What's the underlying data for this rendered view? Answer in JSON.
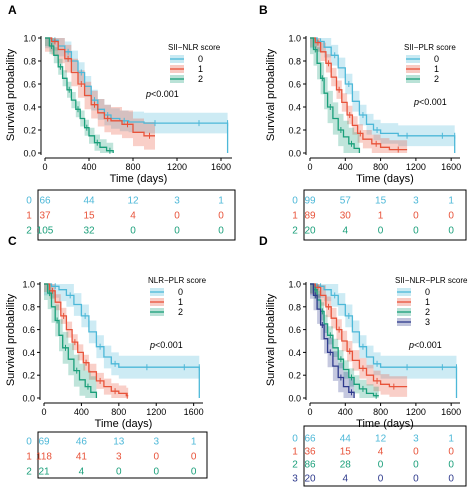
{
  "colors": {
    "c0": "#4db8d8",
    "c1": "#e8533a",
    "c2": "#1a9f7a",
    "c3": "#2e3a8c"
  },
  "chart_data": [
    {
      "id": "A",
      "type": "line",
      "subtype": "kaplan-meier",
      "panel_label": "A",
      "xlabel": "Time (days)",
      "ylabel": "Survival probability",
      "xticks": [
        "0",
        "400",
        "800",
        "1200",
        "1600"
      ],
      "yticks": [
        "0.0",
        "0.2",
        "0.4",
        "0.6",
        "0.8",
        "1.0"
      ],
      "xlim": [
        0,
        1700
      ],
      "ylim": [
        0,
        1.0
      ],
      "legend_title": "SII−NLR score",
      "legend_position": "top-right",
      "pvalue_label": "p<0.001",
      "series": [
        {
          "name": "0",
          "color_key": "c0",
          "x": [
            0,
            60,
            120,
            180,
            240,
            300,
            360,
            420,
            480,
            540,
            600,
            680,
            760,
            900,
            1100,
            1300,
            1500,
            1660,
            1660
          ],
          "y": [
            1.0,
            0.98,
            0.93,
            0.88,
            0.8,
            0.7,
            0.58,
            0.46,
            0.38,
            0.33,
            0.3,
            0.28,
            0.27,
            0.26,
            0.26,
            0.26,
            0.26,
            0.26,
            0.0
          ],
          "band": 0.09
        },
        {
          "name": "1",
          "color_key": "c1",
          "x": [
            0,
            60,
            120,
            180,
            240,
            300,
            360,
            420,
            480,
            540,
            600,
            700,
            800,
            900,
            1000
          ],
          "y": [
            1.0,
            0.97,
            0.9,
            0.82,
            0.7,
            0.6,
            0.5,
            0.42,
            0.35,
            0.3,
            0.28,
            0.25,
            0.18,
            0.15,
            0.15
          ],
          "band": 0.12
        },
        {
          "name": "2",
          "color_key": "c2",
          "x": [
            0,
            40,
            80,
            120,
            160,
            200,
            240,
            280,
            320,
            360,
            400,
            450,
            500,
            560,
            620
          ],
          "y": [
            1.0,
            0.93,
            0.85,
            0.75,
            0.65,
            0.55,
            0.46,
            0.38,
            0.3,
            0.22,
            0.15,
            0.09,
            0.05,
            0.02,
            0.0
          ],
          "band": 0.07
        }
      ],
      "risk_table": [
        {
          "group": "0",
          "color_key": "c0",
          "counts": [
            "66",
            "44",
            "12",
            "3",
            "1"
          ]
        },
        {
          "group": "1",
          "color_key": "c1",
          "counts": [
            "37",
            "15",
            "4",
            "0",
            "0"
          ]
        },
        {
          "group": "2",
          "color_key": "c2",
          "counts": [
            "105",
            "32",
            "0",
            "0",
            "0"
          ]
        }
      ]
    },
    {
      "id": "B",
      "type": "line",
      "subtype": "kaplan-meier",
      "panel_label": "B",
      "xlabel": "Time (days)",
      "ylabel": "Survival probability",
      "xticks": [
        "0",
        "400",
        "800",
        "1200",
        "1600"
      ],
      "yticks": [
        "0.0",
        "0.2",
        "0.4",
        "0.6",
        "0.8",
        "1.0"
      ],
      "xlim": [
        0,
        1700
      ],
      "ylim": [
        0,
        1.0
      ],
      "legend_title": "SII−PLR score",
      "legend_position": "top-right",
      "pvalue_label": "p<0.001",
      "series": [
        {
          "name": "0",
          "color_key": "c0",
          "x": [
            0,
            80,
            160,
            240,
            320,
            400,
            480,
            560,
            640,
            720,
            800,
            1000,
            1200,
            1400,
            1600,
            1640,
            1640
          ],
          "y": [
            1.0,
            0.97,
            0.92,
            0.85,
            0.74,
            0.6,
            0.45,
            0.33,
            0.25,
            0.2,
            0.17,
            0.15,
            0.15,
            0.15,
            0.15,
            0.15,
            0.0
          ],
          "band": 0.09
        },
        {
          "name": "1",
          "color_key": "c1",
          "x": [
            0,
            60,
            120,
            180,
            240,
            300,
            360,
            420,
            480,
            540,
            600,
            700,
            800,
            900,
            1100
          ],
          "y": [
            1.0,
            0.96,
            0.88,
            0.78,
            0.66,
            0.55,
            0.44,
            0.33,
            0.24,
            0.17,
            0.12,
            0.08,
            0.05,
            0.03,
            0.03
          ],
          "band": 0.08
        },
        {
          "name": "2",
          "color_key": "c2",
          "x": [
            0,
            40,
            80,
            120,
            160,
            200,
            260,
            320,
            380,
            440,
            500,
            560
          ],
          "y": [
            1.0,
            0.9,
            0.78,
            0.65,
            0.52,
            0.4,
            0.3,
            0.2,
            0.14,
            0.08,
            0.04,
            0.0
          ],
          "band": 0.14
        }
      ],
      "risk_table": [
        {
          "group": "0",
          "color_key": "c0",
          "counts": [
            "99",
            "57",
            "15",
            "3",
            "1"
          ]
        },
        {
          "group": "1",
          "color_key": "c1",
          "counts": [
            "89",
            "30",
            "1",
            "0",
            "0"
          ]
        },
        {
          "group": "2",
          "color_key": "c2",
          "counts": [
            "20",
            "4",
            "0",
            "0",
            "0"
          ]
        }
      ]
    },
    {
      "id": "C",
      "type": "line",
      "subtype": "kaplan-meier",
      "panel_label": "C",
      "xlabel": "Time (days)",
      "ylabel": "Survival probability",
      "xticks": [
        "0",
        "400",
        "800",
        "1200",
        "1600"
      ],
      "yticks": [
        "0.0",
        "0.2",
        "0.4",
        "0.6",
        "0.8",
        "1.0"
      ],
      "xlim": [
        0,
        1700
      ],
      "ylim": [
        0,
        1.0
      ],
      "legend_title": "NLR−PLR score",
      "legend_position": "top-right",
      "pvalue_label": "p<0.001",
      "series": [
        {
          "name": "0",
          "color_key": "c0",
          "x": [
            0,
            80,
            160,
            240,
            320,
            400,
            480,
            560,
            640,
            720,
            800,
            1000,
            1200,
            1400,
            1600,
            1660,
            1660
          ],
          "y": [
            1.0,
            0.98,
            0.95,
            0.9,
            0.82,
            0.72,
            0.58,
            0.45,
            0.36,
            0.3,
            0.27,
            0.27,
            0.27,
            0.27,
            0.27,
            0.27,
            0.0
          ],
          "band": 0.1
        },
        {
          "name": "1",
          "color_key": "c1",
          "x": [
            0,
            60,
            120,
            180,
            240,
            300,
            360,
            420,
            480,
            560,
            640,
            720,
            800,
            880,
            900
          ],
          "y": [
            1.0,
            0.94,
            0.84,
            0.72,
            0.6,
            0.49,
            0.4,
            0.31,
            0.23,
            0.15,
            0.1,
            0.06,
            0.04,
            0.02,
            0.02
          ],
          "band": 0.07
        },
        {
          "name": "2",
          "color_key": "c2",
          "x": [
            0,
            40,
            80,
            120,
            160,
            200,
            260,
            320,
            380,
            440,
            500,
            560
          ],
          "y": [
            1.0,
            0.92,
            0.8,
            0.68,
            0.55,
            0.44,
            0.34,
            0.24,
            0.16,
            0.1,
            0.05,
            0.0
          ],
          "band": 0.14
        }
      ],
      "risk_table": [
        {
          "group": "0",
          "color_key": "c0",
          "counts": [
            "69",
            "46",
            "13",
            "3",
            "1"
          ]
        },
        {
          "group": "1",
          "color_key": "c1",
          "counts": [
            "118",
            "41",
            "3",
            "0",
            "0"
          ]
        },
        {
          "group": "2",
          "color_key": "c2",
          "counts": [
            "21",
            "4",
            "0",
            "0",
            "0"
          ]
        }
      ]
    },
    {
      "id": "D",
      "type": "line",
      "subtype": "kaplan-meier",
      "panel_label": "D",
      "xlabel": "Time (days)",
      "ylabel": "Survival probability",
      "xticks": [
        "0",
        "400",
        "800",
        "1200",
        "1600"
      ],
      "yticks": [
        "0.0",
        "0.2",
        "0.4",
        "0.6",
        "0.8",
        "1.0"
      ],
      "xlim": [
        0,
        1700
      ],
      "ylim": [
        0,
        1.0
      ],
      "legend_title": "SII−NLR−PLR score",
      "legend_position": "top-right",
      "pvalue_label": "p<0.001",
      "series": [
        {
          "name": "0",
          "color_key": "c0",
          "x": [
            0,
            80,
            160,
            240,
            320,
            400,
            480,
            560,
            640,
            720,
            800,
            1000,
            1200,
            1400,
            1600,
            1660,
            1660
          ],
          "y": [
            1.0,
            0.98,
            0.95,
            0.9,
            0.82,
            0.72,
            0.58,
            0.45,
            0.36,
            0.3,
            0.27,
            0.27,
            0.27,
            0.27,
            0.27,
            0.27,
            0.0
          ],
          "band": 0.1
        },
        {
          "name": "1",
          "color_key": "c1",
          "x": [
            0,
            60,
            120,
            180,
            240,
            300,
            360,
            420,
            480,
            560,
            640,
            720,
            800,
            900,
            1000,
            1100
          ],
          "y": [
            1.0,
            0.97,
            0.9,
            0.8,
            0.7,
            0.6,
            0.5,
            0.41,
            0.33,
            0.26,
            0.2,
            0.15,
            0.12,
            0.1,
            0.1,
            0.1
          ],
          "band": 0.09
        },
        {
          "name": "2",
          "color_key": "c2",
          "x": [
            0,
            40,
            80,
            120,
            160,
            200,
            260,
            320,
            380,
            440,
            500,
            560,
            640,
            720,
            780
          ],
          "y": [
            1.0,
            0.95,
            0.86,
            0.76,
            0.65,
            0.55,
            0.44,
            0.34,
            0.25,
            0.18,
            0.12,
            0.08,
            0.04,
            0.02,
            0.02
          ],
          "band": 0.08
        },
        {
          "name": "3",
          "color_key": "c3",
          "x": [
            0,
            40,
            80,
            120,
            160,
            200,
            260,
            320,
            380,
            440,
            500
          ],
          "y": [
            1.0,
            0.9,
            0.78,
            0.64,
            0.52,
            0.4,
            0.28,
            0.18,
            0.1,
            0.05,
            0.0
          ],
          "band": 0.13
        }
      ],
      "risk_table": [
        {
          "group": "0",
          "color_key": "c0",
          "counts": [
            "66",
            "44",
            "12",
            "3",
            "1"
          ]
        },
        {
          "group": "1",
          "color_key": "c1",
          "counts": [
            "36",
            "15",
            "4",
            "0",
            "0"
          ]
        },
        {
          "group": "2",
          "color_key": "c2",
          "counts": [
            "86",
            "28",
            "0",
            "0",
            "0"
          ]
        },
        {
          "group": "3",
          "color_key": "c3",
          "counts": [
            "20",
            "4",
            "0",
            "0",
            "0"
          ]
        }
      ]
    }
  ]
}
